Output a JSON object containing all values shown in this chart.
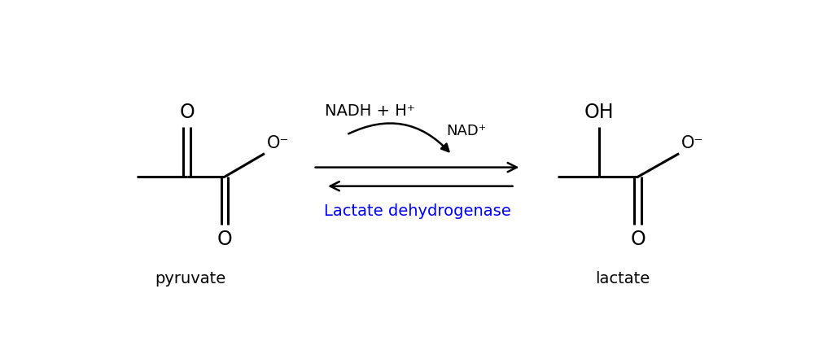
{
  "bg_color": "#ffffff",
  "text_color": "#000000",
  "blue_color": "#0000ff",
  "lw": 2.2,
  "pyruvate_label": "pyruvate",
  "lactate_label": "lactate",
  "nadh_label": "NADH + H⁺",
  "nad_label": "NAD⁺",
  "enzyme_label": "Lactate dehydrogenase",
  "figsize": [
    10.0,
    4.3
  ],
  "dpi": 100
}
